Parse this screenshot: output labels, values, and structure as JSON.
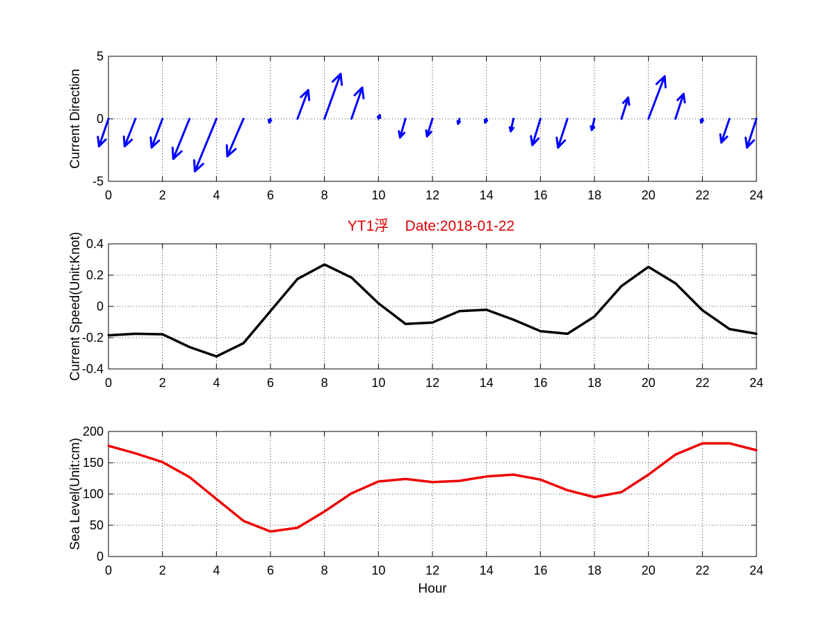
{
  "figure": {
    "title": "YT1浮    Date:2018-01-22",
    "title_color": "#e00000",
    "background": "#ffffff"
  },
  "chart_data": [
    {
      "type": "quiver",
      "ylabel": "Current Direction",
      "xlabel": "",
      "xlim": [
        0,
        24
      ],
      "ylim": [
        -5,
        5
      ],
      "xticks": [
        0,
        2,
        4,
        6,
        8,
        10,
        12,
        14,
        16,
        18,
        20,
        22,
        24
      ],
      "yticks": [
        -5,
        0,
        5
      ],
      "grid": true,
      "color": "#0000ff",
      "x": [
        0,
        1,
        2,
        3,
        4,
        5,
        6,
        7,
        8,
        9,
        10,
        11,
        12,
        13,
        14,
        15,
        16,
        17,
        18,
        19,
        20,
        21,
        22,
        23,
        24
      ],
      "u": [
        -0.35,
        -0.4,
        -0.4,
        -0.6,
        -0.8,
        -0.6,
        -0.05,
        0.4,
        0.6,
        0.4,
        0.05,
        -0.2,
        -0.2,
        -0.05,
        -0.05,
        -0.1,
        -0.3,
        -0.35,
        -0.1,
        0.25,
        0.6,
        0.3,
        -0.05,
        -0.3,
        -0.35
      ],
      "v": [
        -2.2,
        -2.2,
        -2.3,
        -3.2,
        -4.2,
        -3.0,
        -0.3,
        2.3,
        3.6,
        2.5,
        0.3,
        -1.5,
        -1.4,
        -0.4,
        -0.3,
        -1.0,
        -2.1,
        -2.3,
        -0.9,
        1.7,
        3.4,
        2.0,
        -0.3,
        -1.9,
        -2.3
      ]
    },
    {
      "type": "line",
      "ylabel": "Current Speed(Unit:Knot)",
      "xlabel": "",
      "xlim": [
        0,
        24
      ],
      "ylim": [
        -0.4,
        0.4
      ],
      "xticks": [
        0,
        2,
        4,
        6,
        8,
        10,
        12,
        14,
        16,
        18,
        20,
        22,
        24
      ],
      "yticks": [
        -0.4,
        -0.2,
        0,
        0.2,
        0.4
      ],
      "ytick_labels": [
        "-0.4",
        "-0.2",
        "0",
        "0.2",
        "0.4"
      ],
      "grid": true,
      "color": "#000000",
      "x": [
        0,
        1,
        2,
        3,
        4,
        5,
        6,
        7,
        8,
        9,
        10,
        11,
        12,
        13,
        14,
        15,
        16,
        17,
        18,
        19,
        20,
        21,
        22,
        23,
        24
      ],
      "values": [
        -0.185,
        -0.175,
        -0.178,
        -0.26,
        -0.32,
        -0.235,
        -0.03,
        0.175,
        0.268,
        0.185,
        0.02,
        -0.112,
        -0.103,
        -0.03,
        -0.022,
        -0.085,
        -0.158,
        -0.175,
        -0.065,
        0.13,
        0.253,
        0.148,
        -0.025,
        -0.145,
        -0.175
      ]
    },
    {
      "type": "line",
      "ylabel": "Sea Level(Unit:cm)",
      "xlabel": "Hour",
      "xlim": [
        0,
        24
      ],
      "ylim": [
        0,
        200
      ],
      "xticks": [
        0,
        2,
        4,
        6,
        8,
        10,
        12,
        14,
        16,
        18,
        20,
        22,
        24
      ],
      "yticks": [
        0,
        50,
        100,
        150,
        200
      ],
      "grid": true,
      "color": "#ee0000",
      "x": [
        0,
        1,
        2,
        3,
        4,
        5,
        6,
        7,
        8,
        9,
        10,
        11,
        12,
        13,
        14,
        15,
        16,
        17,
        18,
        19,
        20,
        21,
        22,
        23,
        24
      ],
      "values": [
        177,
        165,
        151,
        127,
        92,
        57,
        40,
        46,
        72,
        101,
        120,
        124,
        119,
        121,
        128,
        131,
        123,
        106,
        95,
        103,
        131,
        163,
        181,
        181,
        170
      ]
    }
  ]
}
